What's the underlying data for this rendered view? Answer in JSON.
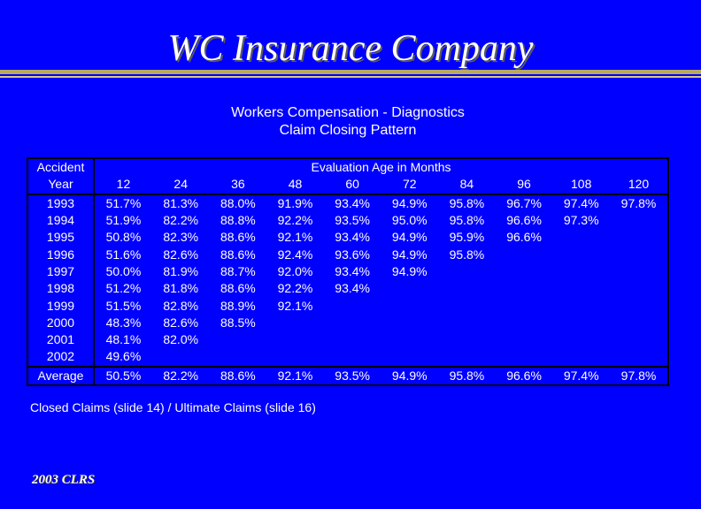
{
  "slide": {
    "title": "WC Insurance Company",
    "subtitle_line1": "Workers Compensation - Diagnostics",
    "subtitle_line2": "Claim Closing Pattern",
    "footnote": "Closed Claims (slide 14) / Ultimate Claims (slide 16)",
    "footer": "2003 CLRS"
  },
  "table": {
    "row_header_line1": "Accident",
    "row_header_line2": "Year",
    "column_group_header": "Evaluation Age in Months",
    "ages": [
      "12",
      "24",
      "36",
      "48",
      "60",
      "72",
      "84",
      "96",
      "108",
      "120"
    ],
    "rows": [
      {
        "year": "1993",
        "values": [
          "51.7%",
          "81.3%",
          "88.0%",
          "91.9%",
          "93.4%",
          "94.9%",
          "95.8%",
          "96.7%",
          "97.4%",
          "97.8%"
        ]
      },
      {
        "year": "1994",
        "values": [
          "51.9%",
          "82.2%",
          "88.8%",
          "92.2%",
          "93.5%",
          "95.0%",
          "95.8%",
          "96.6%",
          "97.3%",
          ""
        ]
      },
      {
        "year": "1995",
        "values": [
          "50.8%",
          "82.3%",
          "88.6%",
          "92.1%",
          "93.4%",
          "94.9%",
          "95.9%",
          "96.6%",
          "",
          ""
        ]
      },
      {
        "year": "1996",
        "values": [
          "51.6%",
          "82.6%",
          "88.6%",
          "92.4%",
          "93.6%",
          "94.9%",
          "95.8%",
          "",
          "",
          ""
        ]
      },
      {
        "year": "1997",
        "values": [
          "50.0%",
          "81.9%",
          "88.7%",
          "92.0%",
          "93.4%",
          "94.9%",
          "",
          "",
          "",
          ""
        ]
      },
      {
        "year": "1998",
        "values": [
          "51.2%",
          "81.8%",
          "88.6%",
          "92.2%",
          "93.4%",
          "",
          "",
          "",
          "",
          ""
        ]
      },
      {
        "year": "1999",
        "values": [
          "51.5%",
          "82.8%",
          "88.9%",
          "92.1%",
          "",
          "",
          "",
          "",
          "",
          ""
        ]
      },
      {
        "year": "2000",
        "values": [
          "48.3%",
          "82.6%",
          "88.5%",
          "",
          "",
          "",
          "",
          "",
          "",
          ""
        ]
      },
      {
        "year": "2001",
        "values": [
          "48.1%",
          "82.0%",
          "",
          "",
          "",
          "",
          "",
          "",
          "",
          ""
        ]
      },
      {
        "year": "2002",
        "values": [
          "49.6%",
          "",
          "",
          "",
          "",
          "",
          "",
          "",
          "",
          ""
        ]
      }
    ],
    "average": {
      "label": "Average",
      "values": [
        "50.5%",
        "82.2%",
        "88.6%",
        "92.1%",
        "93.5%",
        "94.9%",
        "95.8%",
        "96.6%",
        "97.4%",
        "97.8%"
      ]
    }
  }
}
